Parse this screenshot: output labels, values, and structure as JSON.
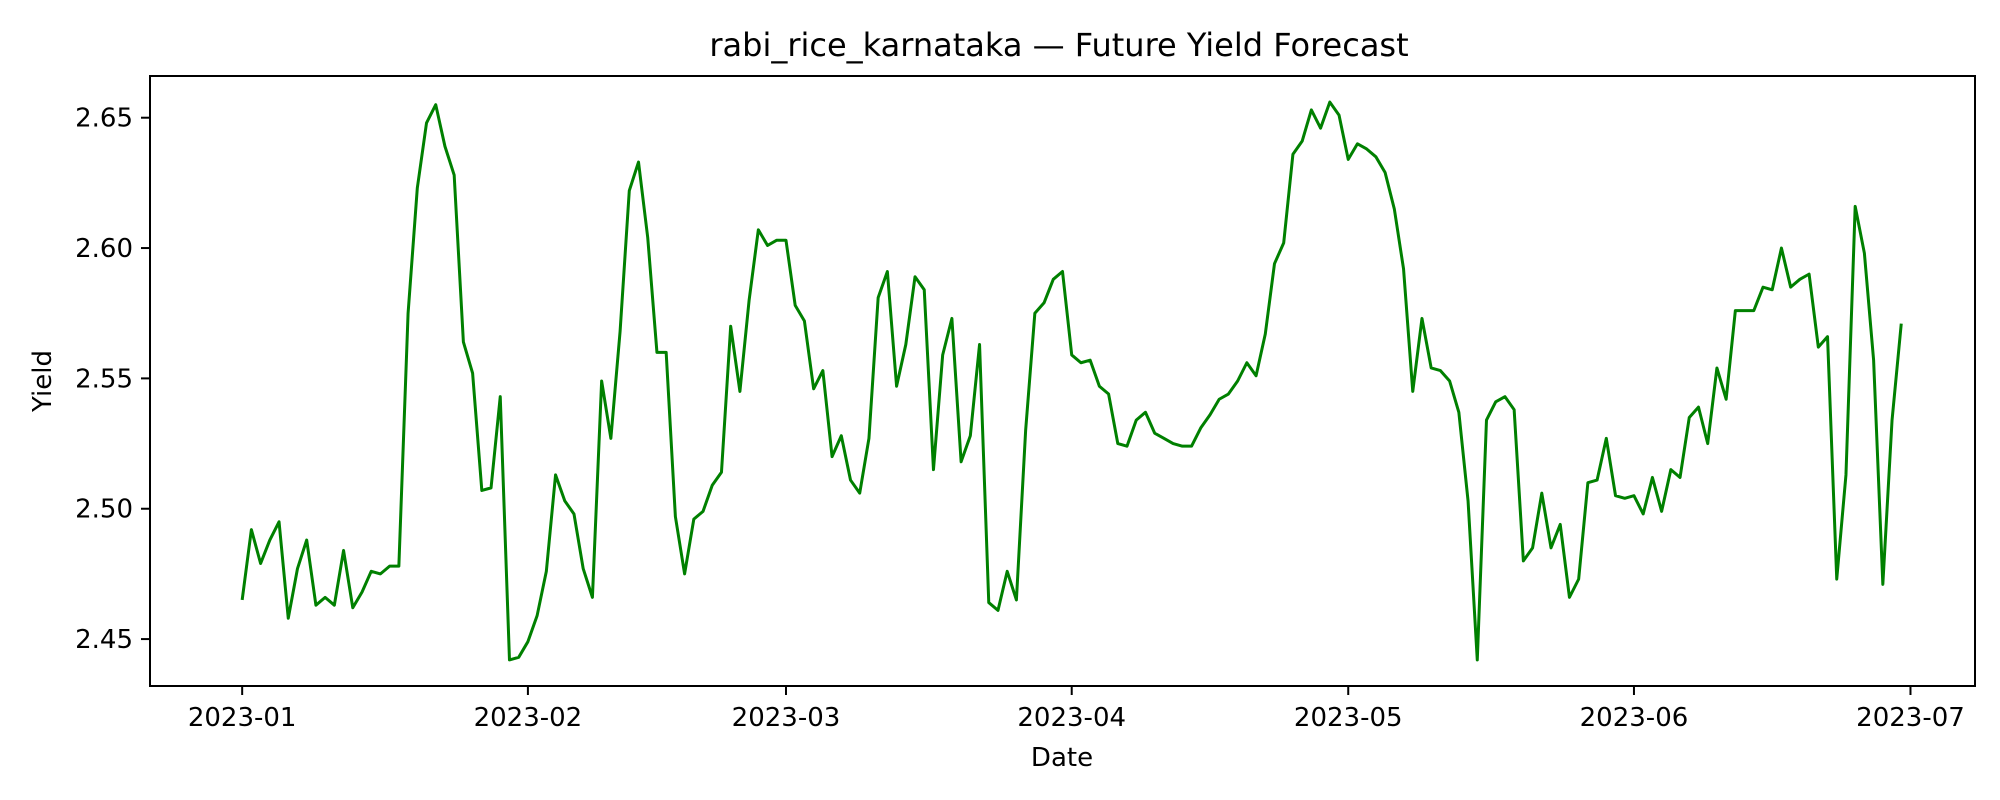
{
  "chart_data": {
    "type": "line",
    "title": "rabi_rice_karnataka — Future Yield Forecast",
    "xlabel": "Date",
    "ylabel": "Yield",
    "x_ticks": [
      "2023-01",
      "2023-02",
      "2023-03",
      "2023-04",
      "2023-05",
      "2023-06",
      "2023-07"
    ],
    "y_ticks": [
      "2.45",
      "2.50",
      "2.55",
      "2.60",
      "2.65"
    ],
    "xlim": [
      "2022-12-22",
      "2023-07-08"
    ],
    "ylim": [
      2.432,
      2.666
    ],
    "grid": false,
    "legend": "none",
    "color": "#008000",
    "series": [
      {
        "x": [
          "2023-01-01",
          "2023-01-02",
          "2023-01-03",
          "2023-01-04",
          "2023-01-05",
          "2023-01-06",
          "2023-01-07",
          "2023-01-08",
          "2023-01-09",
          "2023-01-10",
          "2023-01-11",
          "2023-01-12",
          "2023-01-13",
          "2023-01-14",
          "2023-01-15",
          "2023-01-16",
          "2023-01-17",
          "2023-01-18",
          "2023-01-19",
          "2023-01-20",
          "2023-01-21",
          "2023-01-22",
          "2023-01-23",
          "2023-01-24",
          "2023-01-25",
          "2023-01-26",
          "2023-01-27",
          "2023-01-28",
          "2023-01-29",
          "2023-01-30",
          "2023-01-31",
          "2023-02-01",
          "2023-02-02",
          "2023-02-03",
          "2023-02-04",
          "2023-02-05",
          "2023-02-06",
          "2023-02-07",
          "2023-02-08",
          "2023-02-09",
          "2023-02-10",
          "2023-02-11",
          "2023-02-12",
          "2023-02-13",
          "2023-02-14",
          "2023-02-15",
          "2023-02-16",
          "2023-02-17",
          "2023-02-18",
          "2023-02-19",
          "2023-02-20",
          "2023-02-21",
          "2023-02-22",
          "2023-02-23",
          "2023-02-24",
          "2023-02-25",
          "2023-02-26",
          "2023-02-27",
          "2023-02-28",
          "2023-03-01",
          "2023-03-02",
          "2023-03-03",
          "2023-03-04",
          "2023-03-05",
          "2023-03-06",
          "2023-03-07",
          "2023-03-08",
          "2023-03-09",
          "2023-03-10",
          "2023-03-11",
          "2023-03-12",
          "2023-03-13",
          "2023-03-14",
          "2023-03-15",
          "2023-03-16",
          "2023-03-17",
          "2023-03-18",
          "2023-03-19",
          "2023-03-20",
          "2023-03-21",
          "2023-03-22",
          "2023-03-23",
          "2023-03-24",
          "2023-03-25",
          "2023-03-26",
          "2023-03-27",
          "2023-03-28",
          "2023-03-29",
          "2023-03-30",
          "2023-03-31",
          "2023-04-01",
          "2023-04-02",
          "2023-04-03",
          "2023-04-04",
          "2023-04-05",
          "2023-04-06",
          "2023-04-07",
          "2023-04-08",
          "2023-04-09",
          "2023-04-10",
          "2023-04-11",
          "2023-04-12",
          "2023-04-13",
          "2023-04-14",
          "2023-04-15",
          "2023-04-16",
          "2023-04-17",
          "2023-04-18",
          "2023-04-19",
          "2023-04-20",
          "2023-04-21",
          "2023-04-22",
          "2023-04-23",
          "2023-04-24",
          "2023-04-25",
          "2023-04-26",
          "2023-04-27",
          "2023-04-28",
          "2023-04-29",
          "2023-04-30",
          "2023-05-01",
          "2023-05-02",
          "2023-05-03",
          "2023-05-04",
          "2023-05-05",
          "2023-05-06",
          "2023-05-07",
          "2023-05-08",
          "2023-05-09",
          "2023-05-10",
          "2023-05-11",
          "2023-05-12",
          "2023-05-13",
          "2023-05-14",
          "2023-05-15",
          "2023-05-16",
          "2023-05-17",
          "2023-05-18",
          "2023-05-19",
          "2023-05-20",
          "2023-05-21",
          "2023-05-22",
          "2023-05-23",
          "2023-05-24",
          "2023-05-25",
          "2023-05-26",
          "2023-05-27",
          "2023-05-28",
          "2023-05-29",
          "2023-05-30",
          "2023-05-31",
          "2023-06-01",
          "2023-06-02",
          "2023-06-03",
          "2023-06-04",
          "2023-06-05",
          "2023-06-06",
          "2023-06-07",
          "2023-06-08",
          "2023-06-09",
          "2023-06-10",
          "2023-06-11",
          "2023-06-12",
          "2023-06-13",
          "2023-06-14",
          "2023-06-15",
          "2023-06-16",
          "2023-06-17",
          "2023-06-18",
          "2023-06-19",
          "2023-06-20",
          "2023-06-21",
          "2023-06-22",
          "2023-06-23",
          "2023-06-24",
          "2023-06-25",
          "2023-06-26",
          "2023-06-27",
          "2023-06-28",
          "2023-06-29",
          "2023-06-30"
        ],
        "values": [
          2.465,
          2.492,
          2.479,
          2.488,
          2.495,
          2.458,
          2.477,
          2.488,
          2.463,
          2.466,
          2.463,
          2.484,
          2.462,
          2.468,
          2.476,
          2.475,
          2.478,
          2.478,
          2.575,
          2.623,
          2.648,
          2.655,
          2.639,
          2.628,
          2.564,
          2.552,
          2.507,
          2.508,
          2.543,
          2.442,
          2.443,
          2.449,
          2.459,
          2.476,
          2.513,
          2.503,
          2.498,
          2.477,
          2.466,
          2.549,
          2.527,
          2.568,
          2.622,
          2.633,
          2.604,
          2.56,
          2.56,
          2.497,
          2.475,
          2.496,
          2.499,
          2.509,
          2.514,
          2.57,
          2.545,
          2.58,
          2.607,
          2.601,
          2.603,
          2.603,
          2.578,
          2.572,
          2.546,
          2.553,
          2.52,
          2.528,
          2.511,
          2.506,
          2.527,
          2.581,
          2.591,
          2.547,
          2.563,
          2.589,
          2.584,
          2.515,
          2.559,
          2.573,
          2.518,
          2.528,
          2.563,
          2.464,
          2.461,
          2.476,
          2.465,
          2.53,
          2.575,
          2.579,
          2.588,
          2.591,
          2.559,
          2.556,
          2.557,
          2.547,
          2.544,
          2.525,
          2.524,
          2.534,
          2.537,
          2.529,
          2.527,
          2.525,
          2.524,
          2.524,
          2.531,
          2.536,
          2.542,
          2.544,
          2.549,
          2.556,
          2.551,
          2.567,
          2.594,
          2.602,
          2.636,
          2.641,
          2.653,
          2.646,
          2.656,
          2.651,
          2.634,
          2.64,
          2.638,
          2.635,
          2.629,
          2.615,
          2.592,
          2.545,
          2.573,
          2.554,
          2.553,
          2.549,
          2.537,
          2.503,
          2.442,
          2.534,
          2.541,
          2.543,
          2.538,
          2.48,
          2.485,
          2.506,
          2.485,
          2.494,
          2.466,
          2.473,
          2.51,
          2.511,
          2.527,
          2.505,
          2.504,
          2.505,
          2.498,
          2.512,
          2.499,
          2.515,
          2.512,
          2.535,
          2.539,
          2.525,
          2.554,
          2.542,
          2.576,
          2.576,
          2.576,
          2.585,
          2.584,
          2.6,
          2.585,
          2.588,
          2.59,
          2.562,
          2.566,
          2.473,
          2.513,
          2.616,
          2.598,
          2.557,
          2.471,
          2.534,
          2.571
        ]
      }
    ]
  }
}
